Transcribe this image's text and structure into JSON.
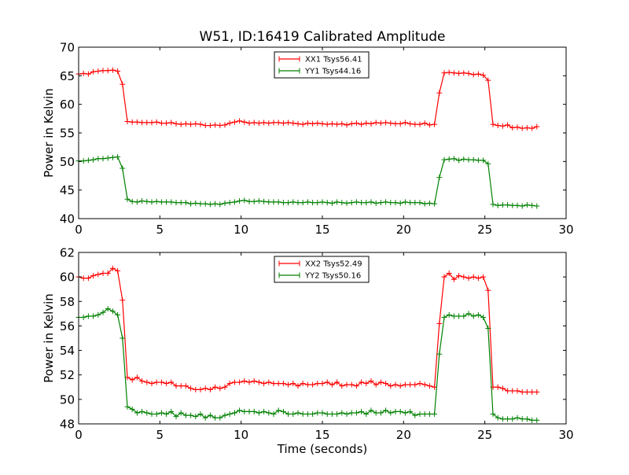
{
  "figure": {
    "title": "W51, ID:16419 Calibrated Amplitude"
  },
  "chart_data": [
    {
      "type": "line",
      "title": "W51, ID:16419 Calibrated Amplitude",
      "xlabel": "",
      "ylabel": "Power in Kelvin",
      "xlim": [
        0,
        30
      ],
      "ylim": [
        40,
        70
      ],
      "xticks": [
        "0",
        "5",
        "10",
        "15",
        "20",
        "25",
        "30"
      ],
      "yticks": [
        "40",
        "45",
        "50",
        "55",
        "60",
        "65",
        "70"
      ],
      "grid": false,
      "legend_position": "top-center",
      "x": [
        0.0,
        0.3,
        0.6,
        0.9,
        1.2,
        1.5,
        1.8,
        2.1,
        2.4,
        2.7,
        3.0,
        3.3,
        3.6,
        3.9,
        4.2,
        4.5,
        4.8,
        5.1,
        5.4,
        5.7,
        6.0,
        6.3,
        6.6,
        6.9,
        7.2,
        7.5,
        7.8,
        8.1,
        8.4,
        8.7,
        9.0,
        9.3,
        9.6,
        9.9,
        10.2,
        10.5,
        10.8,
        11.1,
        11.4,
        11.7,
        12.0,
        12.3,
        12.6,
        12.9,
        13.2,
        13.5,
        13.8,
        14.1,
        14.4,
        14.7,
        15.0,
        15.3,
        15.6,
        15.9,
        16.2,
        16.5,
        16.8,
        17.1,
        17.4,
        17.7,
        18.0,
        18.3,
        18.6,
        18.9,
        19.2,
        19.5,
        19.8,
        20.1,
        20.4,
        20.7,
        21.0,
        21.3,
        21.6,
        21.9,
        22.2,
        22.5,
        22.8,
        23.1,
        23.4,
        23.7,
        24.0,
        24.3,
        24.6,
        24.9,
        25.2,
        25.5,
        25.8,
        26.1,
        26.4,
        26.7,
        27.0,
        27.3,
        27.6,
        27.9,
        28.2
      ],
      "series": [
        {
          "name": "XX1 Tsys56.41",
          "color": "#ff0000",
          "values": [
            65.3,
            65.4,
            65.3,
            65.7,
            65.8,
            65.9,
            65.9,
            66.0,
            65.8,
            63.5,
            57.0,
            56.9,
            56.9,
            56.8,
            56.8,
            56.8,
            56.9,
            56.7,
            56.7,
            56.8,
            56.6,
            56.5,
            56.6,
            56.5,
            56.6,
            56.5,
            56.3,
            56.3,
            56.4,
            56.3,
            56.4,
            56.7,
            56.9,
            57.1,
            56.9,
            56.7,
            56.8,
            56.7,
            56.8,
            56.7,
            56.8,
            56.8,
            56.7,
            56.8,
            56.7,
            56.6,
            56.5,
            56.7,
            56.6,
            56.7,
            56.6,
            56.5,
            56.6,
            56.5,
            56.6,
            56.4,
            56.6,
            56.7,
            56.5,
            56.7,
            56.6,
            56.8,
            56.7,
            56.8,
            56.7,
            56.6,
            56.6,
            56.8,
            56.6,
            56.5,
            56.5,
            56.7,
            56.4,
            56.5,
            62.0,
            65.5,
            65.6,
            65.5,
            65.4,
            65.5,
            65.4,
            65.2,
            65.3,
            65.1,
            64.2,
            56.5,
            56.3,
            56.2,
            56.4,
            55.9,
            56.0,
            55.8,
            55.9,
            55.8,
            56.1
          ]
        },
        {
          "name": "YY1 Tsys44.16",
          "color": "#008000",
          "values": [
            50.1,
            50.1,
            50.2,
            50.3,
            50.5,
            50.5,
            50.6,
            50.7,
            50.8,
            48.8,
            43.4,
            43.0,
            42.9,
            43.1,
            43.0,
            42.9,
            43.0,
            42.9,
            42.9,
            42.9,
            42.8,
            42.8,
            42.8,
            42.6,
            42.7,
            42.6,
            42.6,
            42.5,
            42.6,
            42.5,
            42.7,
            42.8,
            42.9,
            43.1,
            43.2,
            43.0,
            43.0,
            43.1,
            43.0,
            42.9,
            42.9,
            42.9,
            42.8,
            42.8,
            42.9,
            42.8,
            42.8,
            42.9,
            42.8,
            42.8,
            42.9,
            42.8,
            42.7,
            42.9,
            42.8,
            42.7,
            42.8,
            42.9,
            42.8,
            42.8,
            42.9,
            42.7,
            42.8,
            42.9,
            42.8,
            42.8,
            42.7,
            42.9,
            42.8,
            42.8,
            42.8,
            42.6,
            42.7,
            42.6,
            47.2,
            50.3,
            50.4,
            50.5,
            50.2,
            50.4,
            50.3,
            50.3,
            50.2,
            50.2,
            49.6,
            42.5,
            42.3,
            42.4,
            42.4,
            42.3,
            42.3,
            42.2,
            42.4,
            42.3,
            42.2
          ]
        }
      ]
    },
    {
      "type": "line",
      "title": "",
      "xlabel": "Time (seconds)",
      "ylabel": "Power in Kelvin",
      "xlim": [
        0,
        30
      ],
      "ylim": [
        48,
        62
      ],
      "xticks": [
        "0",
        "5",
        "10",
        "15",
        "20",
        "25",
        "30"
      ],
      "yticks": [
        "48",
        "50",
        "52",
        "54",
        "56",
        "58",
        "60",
        "62"
      ],
      "grid": false,
      "legend_position": "top-center",
      "x": [
        0.0,
        0.3,
        0.6,
        0.9,
        1.2,
        1.5,
        1.8,
        2.1,
        2.4,
        2.7,
        3.0,
        3.3,
        3.6,
        3.9,
        4.2,
        4.5,
        4.8,
        5.1,
        5.4,
        5.7,
        6.0,
        6.3,
        6.6,
        6.9,
        7.2,
        7.5,
        7.8,
        8.1,
        8.4,
        8.7,
        9.0,
        9.3,
        9.6,
        9.9,
        10.2,
        10.5,
        10.8,
        11.1,
        11.4,
        11.7,
        12.0,
        12.3,
        12.6,
        12.9,
        13.2,
        13.5,
        13.8,
        14.1,
        14.4,
        14.7,
        15.0,
        15.3,
        15.6,
        15.9,
        16.2,
        16.5,
        16.8,
        17.1,
        17.4,
        17.7,
        18.0,
        18.3,
        18.6,
        18.9,
        19.2,
        19.5,
        19.8,
        20.1,
        20.4,
        20.7,
        21.0,
        21.3,
        21.6,
        21.9,
        22.2,
        22.5,
        22.8,
        23.1,
        23.4,
        23.7,
        24.0,
        24.3,
        24.6,
        24.9,
        25.2,
        25.5,
        25.8,
        26.1,
        26.4,
        26.7,
        27.0,
        27.3,
        27.6,
        27.9,
        28.2
      ],
      "series": [
        {
          "name": "XX2 Tsys52.49",
          "color": "#ff0000",
          "values": [
            60.0,
            59.9,
            59.9,
            60.1,
            60.2,
            60.3,
            60.3,
            60.7,
            60.5,
            58.1,
            51.8,
            51.6,
            51.8,
            51.5,
            51.4,
            51.3,
            51.4,
            51.4,
            51.3,
            51.4,
            51.1,
            51.1,
            51.1,
            50.9,
            50.8,
            50.8,
            50.9,
            50.8,
            51.0,
            50.9,
            51.0,
            51.3,
            51.4,
            51.4,
            51.5,
            51.4,
            51.5,
            51.4,
            51.3,
            51.4,
            51.3,
            51.3,
            51.3,
            51.2,
            51.3,
            51.1,
            51.3,
            51.2,
            51.2,
            51.3,
            51.3,
            51.4,
            51.2,
            51.4,
            51.1,
            51.2,
            51.2,
            51.1,
            51.4,
            51.3,
            51.5,
            51.2,
            51.4,
            51.3,
            51.1,
            51.2,
            51.1,
            51.2,
            51.2,
            51.2,
            51.3,
            51.2,
            51.1,
            51.0,
            56.2,
            60.0,
            60.3,
            59.8,
            60.1,
            60.0,
            59.9,
            60.0,
            59.9,
            60.0,
            58.9,
            51.0,
            51.0,
            50.9,
            50.7,
            50.7,
            50.7,
            50.6,
            50.6,
            50.6,
            50.6
          ]
        },
        {
          "name": "YY2 Tsys50.16",
          "color": "#008000",
          "values": [
            56.7,
            56.7,
            56.8,
            56.8,
            56.9,
            57.1,
            57.4,
            57.2,
            56.9,
            55.0,
            49.4,
            49.2,
            48.9,
            49.0,
            48.9,
            48.8,
            48.8,
            48.9,
            48.8,
            49.0,
            48.6,
            48.9,
            48.7,
            48.7,
            48.6,
            48.8,
            48.5,
            48.7,
            48.5,
            48.5,
            48.7,
            48.8,
            48.9,
            49.1,
            49.0,
            49.0,
            49.0,
            48.9,
            49.0,
            48.9,
            48.8,
            49.1,
            49.0,
            48.8,
            48.8,
            48.9,
            48.8,
            48.8,
            48.8,
            48.9,
            48.9,
            48.8,
            48.8,
            48.8,
            48.9,
            48.8,
            48.9,
            48.9,
            49.0,
            48.8,
            49.1,
            48.9,
            48.9,
            49.1,
            48.9,
            49.0,
            49.0,
            48.9,
            49.0,
            48.7,
            48.8,
            48.8,
            48.8,
            48.8,
            53.7,
            56.7,
            56.9,
            56.8,
            56.8,
            56.8,
            57.0,
            56.8,
            56.9,
            56.7,
            55.8,
            48.8,
            48.5,
            48.4,
            48.4,
            48.4,
            48.5,
            48.4,
            48.4,
            48.3,
            48.3
          ]
        }
      ]
    }
  ]
}
